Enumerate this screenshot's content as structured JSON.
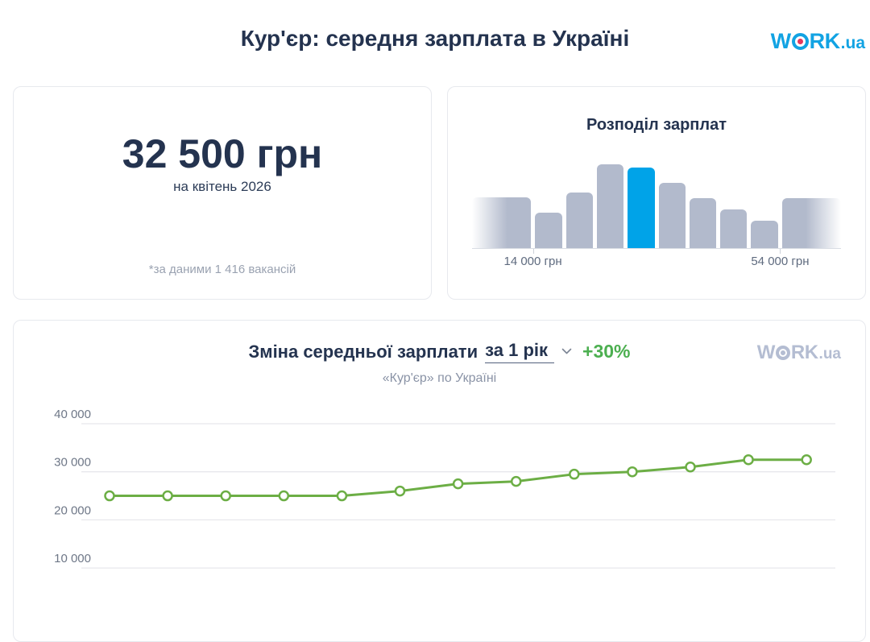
{
  "page": {
    "title": "Кур'єр: середня зарплата в Україні"
  },
  "logo": {
    "w": "W",
    "rk": "RK",
    "ua": ".ua"
  },
  "summary_card": {
    "salary": "32 500 грн",
    "period": "на квітень 2026",
    "footnote": "*за даними 1 416 вакансій"
  },
  "distribution_card": {
    "title": "Розподіл зарплат",
    "min_label": "14 000 грн",
    "max_label": "54 000 грн"
  },
  "trend_card": {
    "title_prefix": "Зміна середньої зарплати",
    "period_selector": "за 1 рік",
    "change": "+30%",
    "subtitle": "«Кур'єр» по Україні"
  },
  "colors": {
    "navy_text": "#24334f",
    "gray_text": "#8a93a6",
    "bar_gray": "#b2bacc",
    "bar_highlight_blue": "#00a3e8",
    "line_green": "#6cae45",
    "change_green": "#4caf50",
    "logo_blue": "#12a3e3",
    "logo_dot_red": "#e4365e",
    "watermark_gray": "#b4bdd2",
    "gridline": "#e7e7ec",
    "card_border": "#e7e9ee"
  },
  "chart_data": [
    {
      "type": "bar",
      "title": "Розподіл зарплат",
      "description": "salary distribution histogram, 10 bars, outer bars fade out at card edges",
      "heights_pct": [
        61,
        42,
        66,
        100,
        96,
        78,
        60,
        46,
        33,
        60
      ],
      "edge_fade_left_index": 0,
      "edge_fade_right_index": 9,
      "highlighted_index": 4,
      "x_labels": [
        "14 000 грн",
        "54 000 грн"
      ],
      "bar_color": "#b2bacc",
      "highlight_color": "#00a3e8"
    },
    {
      "type": "line",
      "title": "Зміна середньої зарплати за 1 рік +30%",
      "subtitle": "«Кур'єр» по Україні",
      "values": [
        25000,
        25000,
        25000,
        25000,
        25000,
        26000,
        27500,
        28000,
        29500,
        30000,
        31000,
        32500,
        32500
      ],
      "y_ticks": [
        40000,
        30000,
        20000,
        10000
      ],
      "y_tick_labels": [
        "40 000",
        "30 000",
        "20 000",
        "10 000"
      ],
      "ylim": [
        10000,
        40000
      ],
      "grid": "horizontal",
      "legend": "none",
      "line_color": "#6cae45",
      "marker": "open-circle"
    }
  ]
}
